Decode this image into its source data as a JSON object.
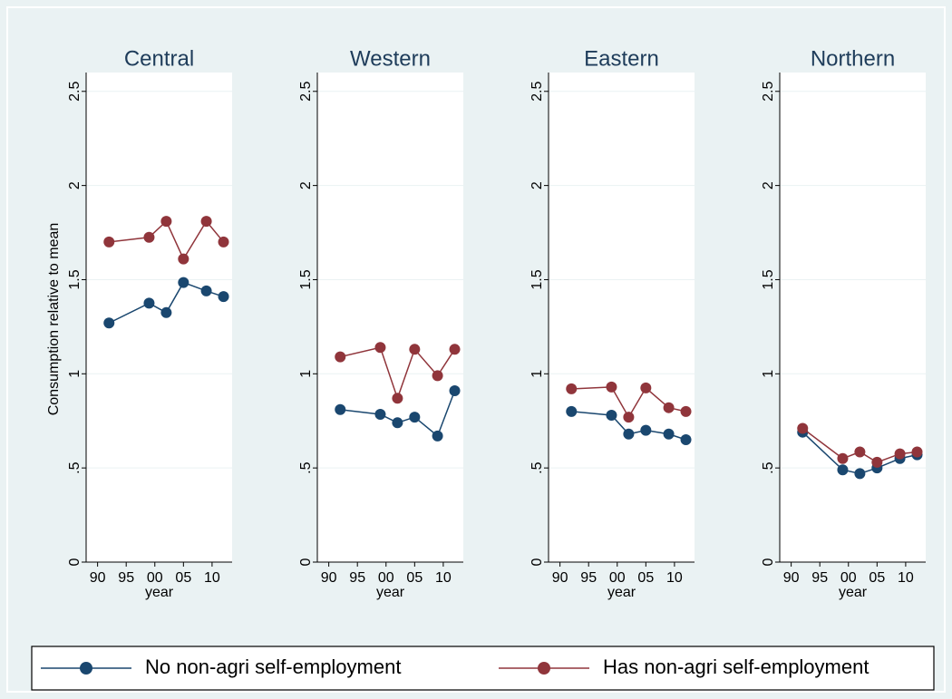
{
  "chart_data": {
    "type": "line",
    "y_label": "Consumption relative to mean",
    "x_label": "year",
    "x": [
      1992,
      1999,
      2002,
      2005,
      2009,
      2012
    ],
    "xlim": [
      1988,
      2013.5
    ],
    "xticks": [
      {
        "value": 1990,
        "label": "90"
      },
      {
        "value": 1995,
        "label": "95"
      },
      {
        "value": 2000,
        "label": "00"
      },
      {
        "value": 2005,
        "label": "05"
      },
      {
        "value": 2010,
        "label": "10"
      }
    ],
    "ylim": [
      0,
      2.6
    ],
    "yticks": [
      0,
      {
        "value": 0.5,
        "label": ".5"
      },
      1,
      1.5,
      2,
      2.5
    ],
    "grid": true,
    "legend": "bottom",
    "series": [
      {
        "name": "No non-agri self-employment",
        "color": "#1a476f"
      },
      {
        "name": "Has non-agri self-employment",
        "color": "#90353b"
      }
    ],
    "panels": [
      {
        "title": "Central",
        "series": [
          {
            "values": [
              1.27,
              1.375,
              1.325,
              1.485,
              1.44,
              1.41
            ]
          },
          {
            "values": [
              1.7,
              1.725,
              1.81,
              1.61,
              1.81,
              1.7
            ]
          }
        ]
      },
      {
        "title": "Western",
        "series": [
          {
            "values": [
              0.81,
              0.785,
              0.74,
              0.77,
              0.67,
              0.91
            ]
          },
          {
            "values": [
              1.09,
              1.14,
              0.87,
              1.13,
              0.99,
              1.13
            ]
          }
        ]
      },
      {
        "title": "Eastern",
        "series": [
          {
            "values": [
              0.8,
              0.78,
              0.68,
              0.7,
              0.68,
              0.65
            ]
          },
          {
            "values": [
              0.92,
              0.93,
              0.77,
              0.925,
              0.82,
              0.8
            ]
          }
        ]
      },
      {
        "title": "Northern",
        "series": [
          {
            "values": [
              0.69,
              0.49,
              0.47,
              0.5,
              0.55,
              0.57
            ]
          },
          {
            "values": [
              0.71,
              0.55,
              0.585,
              0.53,
              0.575,
              0.585
            ]
          }
        ]
      }
    ]
  }
}
